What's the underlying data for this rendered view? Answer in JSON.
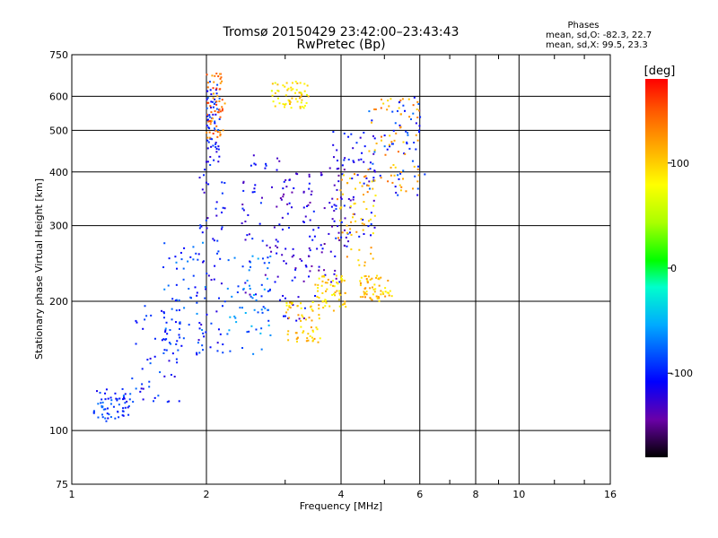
{
  "chart_data": {
    "type": "scatter",
    "title": "Tromsø 20150429 23:42:00–23:43:43",
    "subtitle": "RwPretec (Bp)",
    "stats_title": "Phases",
    "stats_line1": "mean, sd,O: -82.3, 22.7",
    "stats_line2": "mean, sd,X:  99.5, 23.3",
    "xlabel": "Frequency [MHz]",
    "ylabel": "Stationary phase Virtual Height [km]",
    "x_scale": "log",
    "y_scale": "log",
    "xlim": [
      1,
      16
    ],
    "ylim": [
      75,
      750
    ],
    "xticks": [
      1,
      2,
      4,
      6,
      8,
      10,
      16
    ],
    "xtick_labels": [
      "1",
      "2",
      "4",
      "6",
      "8",
      "10",
      "16"
    ],
    "yticks": [
      75,
      100,
      200,
      300,
      400,
      500,
      600,
      750
    ],
    "ytick_labels": [
      "75",
      "100",
      "200",
      "300",
      "400",
      "500",
      "600",
      "750"
    ],
    "grid": true,
    "colorbar": {
      "label": "[deg]",
      "range": [
        -180,
        180
      ],
      "ticks": [
        100,
        0,
        -100
      ],
      "tick_labels": [
        "100",
        "0",
        "-100"
      ],
      "colors": [
        "#000000",
        "#6a00a8",
        "#0000ff",
        "#00aaff",
        "#00ffcc",
        "#00ff00",
        "#aaff00",
        "#ffff00",
        "#ffaa00",
        "#ff5500",
        "#ff0000"
      ]
    },
    "series": [
      {
        "mode": "O",
        "clusters": [
          {
            "f": [
              1.12,
              1.35
            ],
            "h": [
              105,
              125
            ],
            "phase": -95
          },
          {
            "f": [
              1.35,
              1.75
            ],
            "h": [
              115,
              200
            ],
            "phase": -100
          },
          {
            "f": [
              1.6,
              2.0
            ],
            "h": [
              150,
              280
            ],
            "phase": -85
          },
          {
            "f": [
              1.9,
              2.2
            ],
            "h": [
              150,
              420
            ],
            "phase": -110
          },
          {
            "f": [
              2.0,
              2.15
            ],
            "h": [
              420,
              650
            ],
            "phase": -100
          },
          {
            "f": [
              2.2,
              2.8
            ],
            "h": [
              150,
              260
            ],
            "phase": -70
          },
          {
            "f": [
              2.4,
              3.0
            ],
            "h": [
              200,
              450
            ],
            "phase": -115
          },
          {
            "f": [
              2.9,
              3.5
            ],
            "h": [
              180,
              400
            ],
            "phase": -120
          },
          {
            "f": [
              3.3,
              4.2
            ],
            "h": [
              220,
              420
            ],
            "phase": -125
          },
          {
            "f": [
              3.8,
              4.8
            ],
            "h": [
              280,
              500
            ],
            "phase": -110
          },
          {
            "f": [
              4.5,
              6.2
            ],
            "h": [
              350,
              600
            ],
            "phase": -95
          }
        ]
      },
      {
        "mode": "X",
        "clusters": [
          {
            "f": [
              2.0,
              2.2
            ],
            "h": [
              480,
              680
            ],
            "phase": 140
          },
          {
            "f": [
              3.0,
              3.6
            ],
            "h": [
              160,
              200
            ],
            "phase": 100
          },
          {
            "f": [
              3.5,
              4.1
            ],
            "h": [
              190,
              230
            ],
            "phase": 95
          },
          {
            "f": [
              3.9,
              4.8
            ],
            "h": [
              240,
              400
            ],
            "phase": 110
          },
          {
            "f": [
              4.6,
              6.0
            ],
            "h": [
              360,
              600
            ],
            "phase": 120
          },
          {
            "f": [
              2.8,
              3.4
            ],
            "h": [
              560,
              650
            ],
            "phase": 90
          },
          {
            "f": [
              4.4,
              5.2
            ],
            "h": [
              200,
              230
            ],
            "phase": 105
          }
        ]
      }
    ]
  }
}
